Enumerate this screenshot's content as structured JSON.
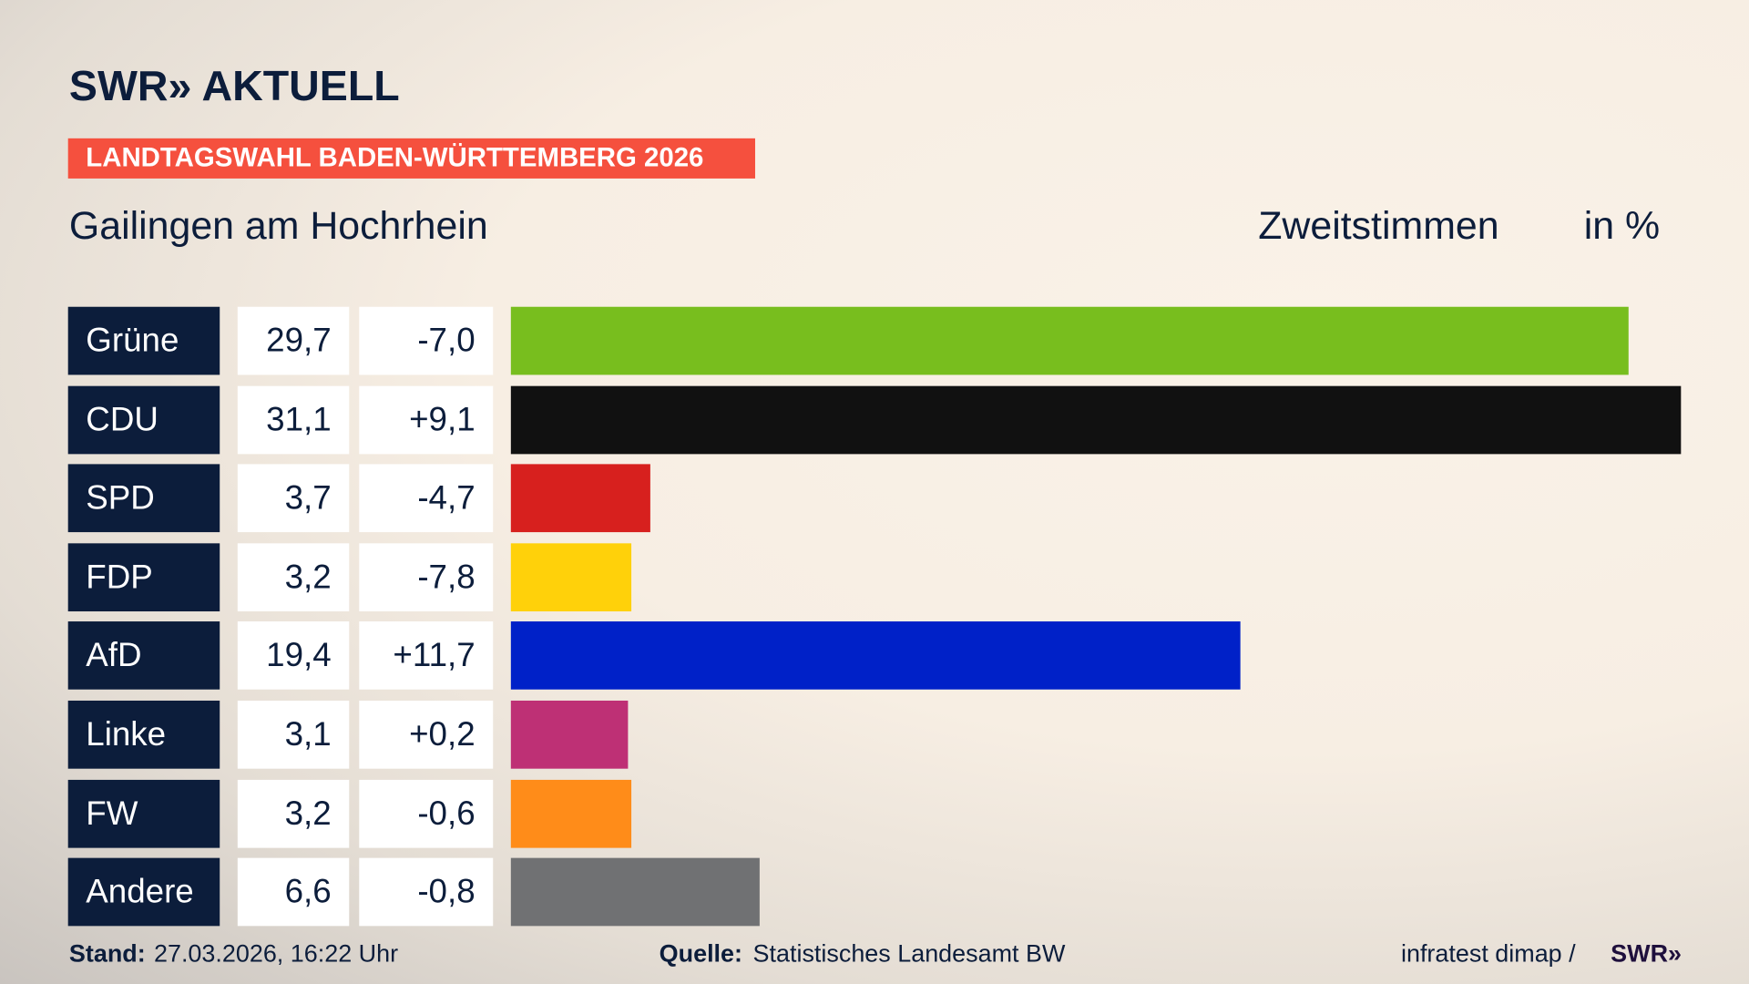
{
  "header": {
    "logo": "SWR» AKTUELL",
    "banner": "LANDTAGSWAHL BADEN-WÜRTTEMBERG 2026",
    "place": "Gailingen am Hochrhein",
    "metric": "Zweitstimmen",
    "unit": "in %"
  },
  "chart_data": {
    "type": "bar",
    "orientation": "horizontal",
    "title": "Gailingen am Hochrhein",
    "ylabel": "Zweitstimmen",
    "unit": "in %",
    "categories": [
      "Grüne",
      "CDU",
      "SPD",
      "FDP",
      "AfD",
      "Linke",
      "FW",
      "Andere"
    ],
    "values": [
      29.7,
      31.1,
      3.7,
      3.2,
      19.4,
      3.1,
      3.2,
      6.6
    ],
    "value_labels": [
      "29,7",
      "31,1",
      "3,7",
      "3,2",
      "19,4",
      "3,1",
      "3,2",
      "6,6"
    ],
    "change_labels": [
      "-7,0",
      "+9,1",
      "-4,7",
      "-7,8",
      "+11,7",
      "+0,2",
      "-0,6",
      "-0,8"
    ],
    "changes": [
      -7.0,
      9.1,
      -4.7,
      -7.8,
      11.7,
      0.2,
      -0.6,
      -0.8
    ],
    "colors": [
      "#78be1e",
      "#111111",
      "#d7201e",
      "#ffd10a",
      "#0021c8",
      "#be3075",
      "#ff8c19",
      "#707173"
    ],
    "xlim": [
      0,
      31.1
    ],
    "grid": false
  },
  "footer": {
    "stand_label": "Stand:",
    "stand_value": "27.03.2026, 16:22 Uhr",
    "quelle_label": "Quelle:",
    "quelle_value": "Statistisches Landesamt BW",
    "credit": "infratest dimap /",
    "credit_logo": "SWR»"
  }
}
